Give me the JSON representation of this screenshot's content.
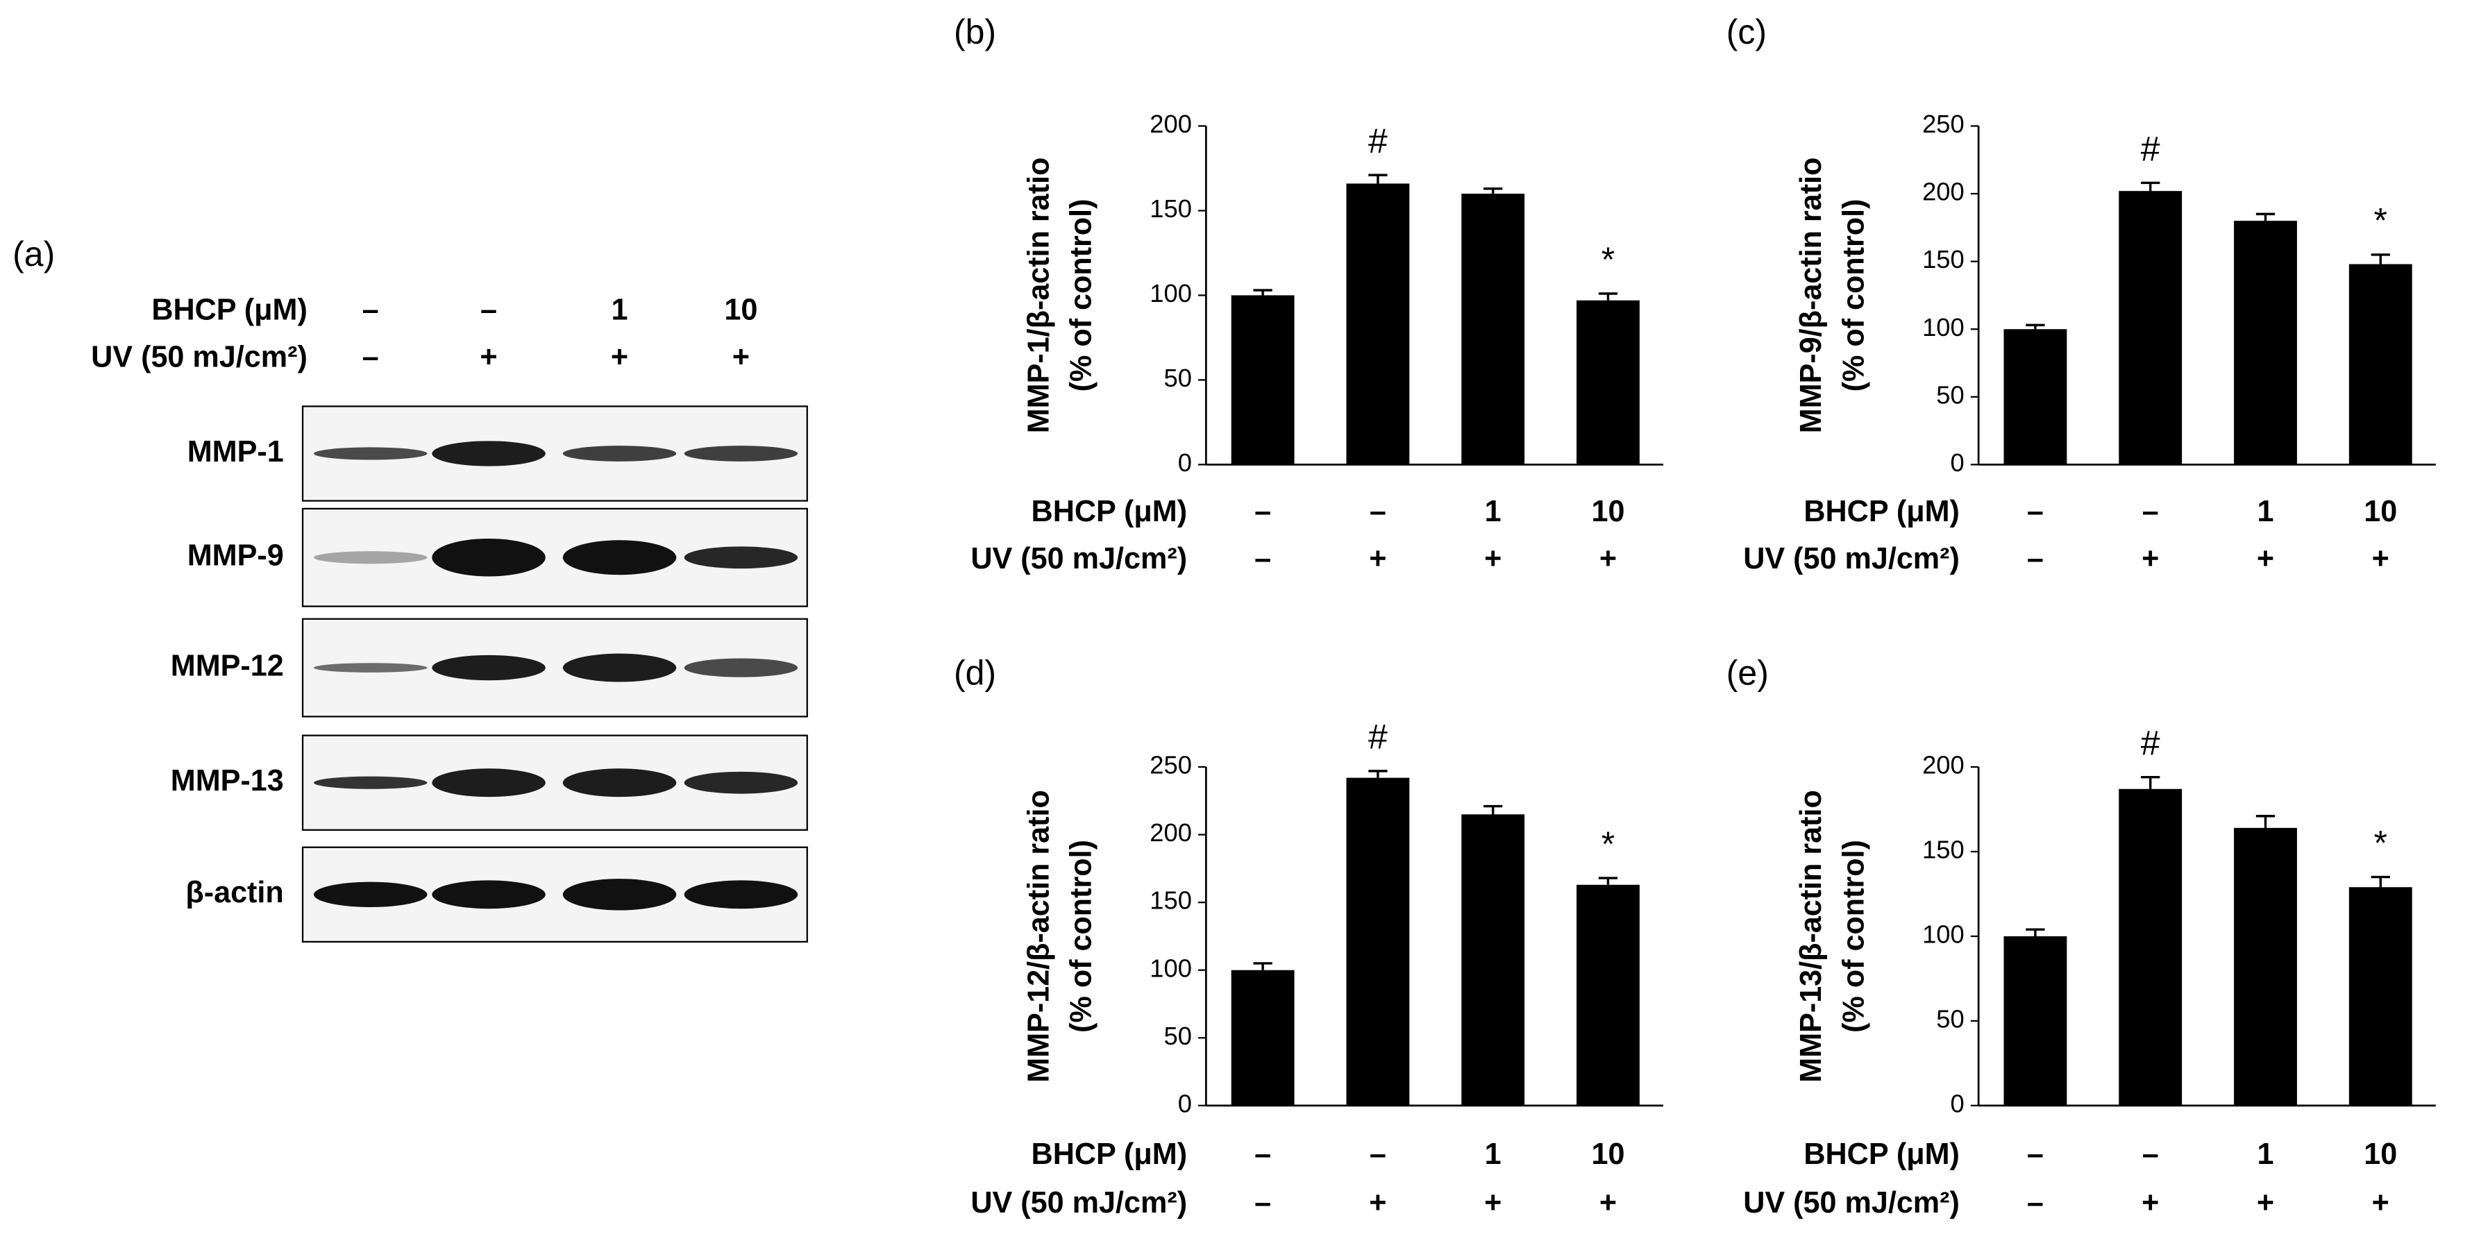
{
  "blot": {
    "panel": "(a)",
    "treatments": [
      {
        "label": "BHCP (μM)",
        "values": [
          "–",
          "–",
          "1",
          "10"
        ]
      },
      {
        "label": "UV (50 mJ/cm²)",
        "values": [
          "–",
          "+",
          "+",
          "+"
        ]
      }
    ],
    "proteins": [
      "MMP-1",
      "MMP-9",
      "MMP-12",
      "MMP-13",
      "β-actin"
    ]
  },
  "chart_data": [
    {
      "type": "bar",
      "panel": "(b)",
      "ylabel": [
        "MMP-1/β-actin ratio",
        "(% of control)"
      ],
      "color": "#000000",
      "values": [
        100,
        166,
        160,
        97
      ],
      "errors": [
        3,
        5,
        3,
        4
      ],
      "markers": [
        null,
        "#",
        null,
        "*"
      ],
      "ylim": [
        0,
        200
      ],
      "yticks": [
        0,
        50,
        100,
        150,
        200
      ],
      "treatments": [
        {
          "label": "BHCP (μM)",
          "values": [
            "–",
            "–",
            "1",
            "10"
          ]
        },
        {
          "label": "UV (50 mJ/cm²)",
          "values": [
            "–",
            "+",
            "+",
            "+"
          ]
        }
      ]
    },
    {
      "type": "bar",
      "panel": "(c)",
      "ylabel": [
        "MMP-9/β-actin ratio",
        "(% of control)"
      ],
      "color": "#000000",
      "values": [
        100,
        202,
        180,
        148
      ],
      "errors": [
        3,
        6,
        5,
        7
      ],
      "markers": [
        null,
        "#",
        null,
        "*"
      ],
      "ylim": [
        0,
        250
      ],
      "yticks": [
        0,
        50,
        100,
        150,
        200,
        250
      ],
      "treatments": [
        {
          "label": "BHCP (μM)",
          "values": [
            "–",
            "–",
            "1",
            "10"
          ]
        },
        {
          "label": "UV (50 mJ/cm²)",
          "values": [
            "–",
            "+",
            "+",
            "+"
          ]
        }
      ]
    },
    {
      "type": "bar",
      "panel": "(d)",
      "ylabel": [
        "MMP-12/β-actin ratio",
        "(% of control)"
      ],
      "color": "#000000",
      "values": [
        100,
        242,
        215,
        163
      ],
      "errors": [
        5,
        5,
        6,
        5
      ],
      "markers": [
        null,
        "#",
        null,
        "*"
      ],
      "ylim": [
        0,
        250
      ],
      "yticks": [
        0,
        50,
        100,
        150,
        200,
        250
      ],
      "treatments": [
        {
          "label": "BHCP (μM)",
          "values": [
            "–",
            "–",
            "1",
            "10"
          ]
        },
        {
          "label": "UV (50 mJ/cm²)",
          "values": [
            "–",
            "+",
            "+",
            "+"
          ]
        }
      ]
    },
    {
      "type": "bar",
      "panel": "(e)",
      "ylabel": [
        "MMP-13/β-actin ratio",
        "(% of control)"
      ],
      "color": "#000000",
      "values": [
        100,
        187,
        164,
        129
      ],
      "errors": [
        4,
        7,
        7,
        6
      ],
      "markers": [
        null,
        "#",
        null,
        "*"
      ],
      "ylim": [
        0,
        200
      ],
      "yticks": [
        0,
        50,
        100,
        150,
        200
      ],
      "treatments": [
        {
          "label": "BHCP (μM)",
          "values": [
            "–",
            "–",
            "1",
            "10"
          ]
        },
        {
          "label": "UV (50 mJ/cm²)",
          "values": [
            "–",
            "+",
            "+",
            "+"
          ]
        }
      ]
    }
  ]
}
